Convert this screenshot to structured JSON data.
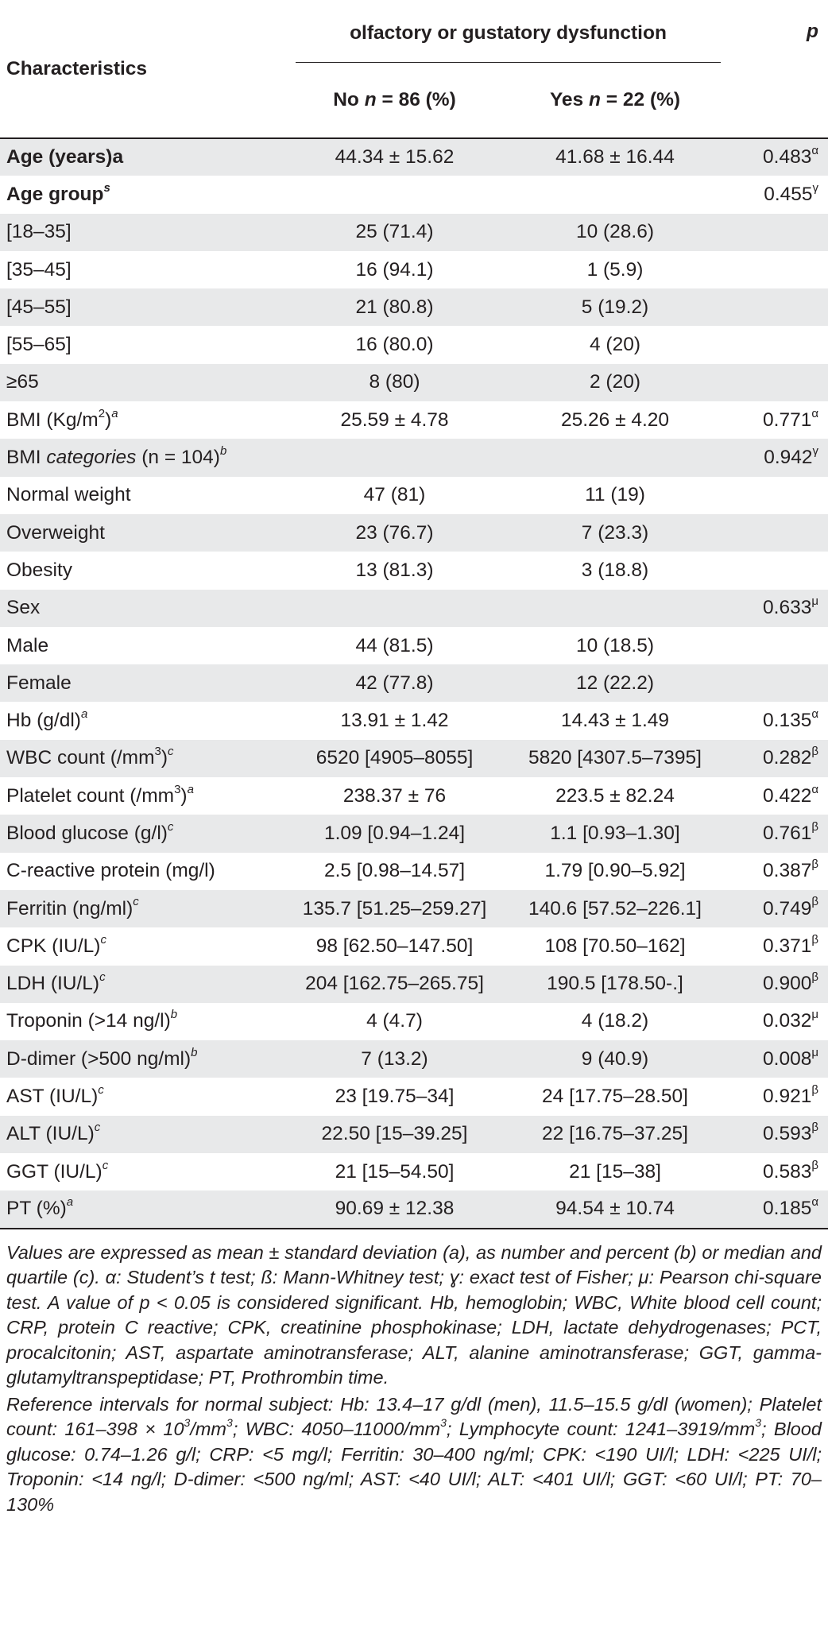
{
  "table": {
    "header": {
      "characteristics": "Characteristics",
      "group_title": "olfactory or gustatory dysfunction",
      "p": "p",
      "col_no": {
        "prefix": "No ",
        "n": "n",
        "rest": " = 86 (%)"
      },
      "col_yes": {
        "prefix": "Yes ",
        "n": "n",
        "rest": " = 22 (%)"
      }
    },
    "rows": [
      {
        "label": "Age (years)a",
        "label_sup": "",
        "bold": true,
        "no": "44.34 ± 15.62",
        "yes": "41.68 ± 16.44",
        "p": "0.483",
        "p_sup": "α"
      },
      {
        "label": "Age group",
        "label_sup": "s",
        "bold": true,
        "no": "",
        "yes": "",
        "p": "0.455",
        "p_sup": "γ"
      },
      {
        "label": "[18–35]",
        "label_sup": "",
        "bold": false,
        "no": "25 (71.4)",
        "yes": "10 (28.6)",
        "p": "",
        "p_sup": ""
      },
      {
        "label": "[35–45]",
        "label_sup": "",
        "bold": false,
        "no": "16 (94.1)",
        "yes": "1 (5.9)",
        "p": "",
        "p_sup": ""
      },
      {
        "label": "[45–55]",
        "label_sup": "",
        "bold": false,
        "no": "21 (80.8)",
        "yes": "5 (19.2)",
        "p": "",
        "p_sup": ""
      },
      {
        "label": "[55–65]",
        "label_sup": "",
        "bold": false,
        "no": "16 (80.0)",
        "yes": "4 (20)",
        "p": "",
        "p_sup": ""
      },
      {
        "label": "≥65",
        "label_sup": "",
        "bold": false,
        "no": "8 (80)",
        "yes": "2 (20)",
        "p": "",
        "p_sup": ""
      },
      {
        "label": "BMI (Kg/m",
        "label_mid_sup": "2",
        "label_tail": ")",
        "label_sup": "a",
        "bold": false,
        "no": "25.59 ± 4.78",
        "yes": "25.26 ± 4.20",
        "p": "0.771",
        "p_sup": "α"
      },
      {
        "label": "BMI ",
        "label_it": "categories",
        "label_tail": " (n = 104)",
        "label_sup": "b",
        "bold": false,
        "no": "",
        "yes": "",
        "p": "0.942",
        "p_sup": "γ"
      },
      {
        "label": "Normal weight",
        "label_sup": "",
        "bold": false,
        "no": "47 (81)",
        "yes": "11 (19)",
        "p": "",
        "p_sup": ""
      },
      {
        "label": "Overweight",
        "label_sup": "",
        "bold": false,
        "no": "23 (76.7)",
        "yes": "7 (23.3)",
        "p": "",
        "p_sup": ""
      },
      {
        "label": "Obesity",
        "label_sup": "",
        "bold": false,
        "no": "13 (81.3)",
        "yes": "3 (18.8)",
        "p": "",
        "p_sup": ""
      },
      {
        "label": "Sex",
        "label_sup": "",
        "bold": false,
        "no": "",
        "yes": "",
        "p": "0.633",
        "p_sup": "μ"
      },
      {
        "label": "Male",
        "label_sup": "",
        "bold": false,
        "no": "44 (81.5)",
        "yes": "10 (18.5)",
        "p": "",
        "p_sup": ""
      },
      {
        "label": "Female",
        "label_sup": "",
        "bold": false,
        "no": "42 (77.8)",
        "yes": "12 (22.2)",
        "p": "",
        "p_sup": ""
      },
      {
        "label": "Hb (g/dl)",
        "label_sup": "a",
        "bold": false,
        "no": "13.91 ± 1.42",
        "yes": "14.43 ± 1.49",
        "p": "0.135",
        "p_sup": "α"
      },
      {
        "label": "WBC count (/mm",
        "label_mid_sup": "3",
        "label_tail": ")",
        "label_sup": "c",
        "bold": false,
        "no": "6520 [4905–8055]",
        "yes": "5820 [4307.5–7395]",
        "p": "0.282",
        "p_sup": "β"
      },
      {
        "label": "Platelet count (/mm",
        "label_mid_sup": "3",
        "label_tail": ")",
        "label_sup": "a",
        "bold": false,
        "no": "238.37 ± 76",
        "yes": "223.5 ± 82.24",
        "p": "0.422",
        "p_sup": "α"
      },
      {
        "label": "Blood glucose (g/l)",
        "label_sup": "c",
        "bold": false,
        "no": "1.09 [0.94–1.24]",
        "yes": "1.1 [0.93–1.30]",
        "p": "0.761",
        "p_sup": "β"
      },
      {
        "label": "C-reactive protein (mg/l)",
        "label_sup": "",
        "bold": false,
        "no": "2.5 [0.98–14.57]",
        "yes": "1.79 [0.90–5.92]",
        "p": "0.387",
        "p_sup": "β"
      },
      {
        "label": "Ferritin (ng/ml)",
        "label_sup": "c",
        "bold": false,
        "no": "135.7 [51.25–259.27]",
        "yes": "140.6 [57.52–226.1]",
        "p": "0.749",
        "p_sup": "β"
      },
      {
        "label": "CPK (IU/L)",
        "label_sup": "c",
        "bold": false,
        "no": "98 [62.50–147.50]",
        "yes": "108 [70.50–162]",
        "p": "0.371",
        "p_sup": "β"
      },
      {
        "label": "LDH (IU/L)",
        "label_sup": "c",
        "bold": false,
        "no": "204 [162.75–265.75]",
        "yes": "190.5 [178.50-.]",
        "p": "0.900",
        "p_sup": "β"
      },
      {
        "label": "Troponin (>14 ng/l)",
        "label_sup": "b",
        "bold": false,
        "no": "4 (4.7)",
        "yes": "4 (18.2)",
        "p": "0.032",
        "p_sup": "μ"
      },
      {
        "label": "D-dimer (>500 ng/ml)",
        "label_sup": "b",
        "bold": false,
        "no": "7 (13.2)",
        "yes": "9 (40.9)",
        "p": "0.008",
        "p_sup": "μ"
      },
      {
        "label": "AST (IU/L)",
        "label_sup": "c",
        "bold": false,
        "no": "23 [19.75–34]",
        "yes": "24 [17.75–28.50]",
        "p": "0.921",
        "p_sup": "β"
      },
      {
        "label": "ALT (IU/L)",
        "label_sup": "c",
        "bold": false,
        "no": "22.50 [15–39.25]",
        "yes": "22 [16.75–37.25]",
        "p": "0.593",
        "p_sup": "β"
      },
      {
        "label": "GGT (IU/L)",
        "label_sup": "c",
        "bold": false,
        "no": "21 [15–54.50]",
        "yes": "21 [15–38]",
        "p": "0.583",
        "p_sup": "β"
      },
      {
        "label": "PT (%)",
        "label_sup": "a",
        "bold": false,
        "no": "90.69 ± 12.38",
        "yes": "94.54 ± 10.74",
        "p": "0.185",
        "p_sup": "α"
      }
    ]
  },
  "notes": {
    "note1": "Values are expressed as mean ± standard deviation (a), as number and percent (b) or median and quartile (c). α: Student’s t test; ß: Mann-Whitney test; ɣ: exact test of Fisher; μ: Pearson chi-square test. A value of p < 0.05 is considered significant. Hb, hemoglobin; WBC, White blood cell count; CRP, protein C reactive; CPK, creatinine phosphokinase; LDH, lactate dehydrogenases; PCT, procalcitonin; AST, aspartate aminotransferase; ALT, alanine aminotransferase; GGT, gamma-glutamyltranspeptidase; PT, Prothrombin time.",
    "note2_a": "Reference intervals for normal subject: Hb: 13.4–17 g/dl (men), 11.5–15.5 g/dl (women); Platelet count: 161–398 × 10",
    "note2_sup1": "3",
    "note2_b": "/mm",
    "note2_sup2": "3",
    "note2_c": "; WBC: 4050–11000/mm",
    "note2_sup3": "3",
    "note2_d": "; Lymphocyte count: 1241–3919/mm",
    "note2_sup4": "3",
    "note2_e": "; Blood glucose: 0.74–1.26 g/l; CRP: <5 mg/l; Ferritin: 30–400 ng/ml; CPK: <190 UI/l; LDH: <225 UI/l; Troponin: <14 ng/l; D-dimer: <500 ng/ml; AST: <40 UI/l; ALT: <401 UI/l; GGT: <60 UI/l; PT: 70–130%"
  }
}
